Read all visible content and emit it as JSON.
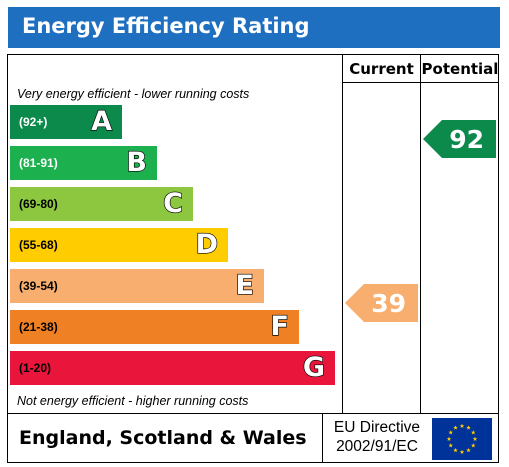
{
  "title": "Energy Efficiency Rating",
  "columns": {
    "current": "Current",
    "potential": "Potential"
  },
  "top_caption": "Very energy efficient - lower running costs",
  "bottom_caption": "Not energy efficient - higher running costs",
  "bands": [
    {
      "range": "(92+)",
      "letter": "A",
      "color": "#0c8a4b",
      "light": true
    },
    {
      "range": "(81-91)",
      "letter": "B",
      "color": "#1cb04e",
      "light": true
    },
    {
      "range": "(69-80)",
      "letter": "C",
      "color": "#8dc63f",
      "light": false
    },
    {
      "range": "(55-68)",
      "letter": "D",
      "color": "#ffcc00",
      "light": false
    },
    {
      "range": "(39-54)",
      "letter": "E",
      "color": "#f7ae6f",
      "light": false
    },
    {
      "range": "(21-38)",
      "letter": "F",
      "color": "#ef8023",
      "light": false
    },
    {
      "range": "(1-20)",
      "letter": "G",
      "color": "#e9153b",
      "light": false
    }
  ],
  "current_rating": {
    "value": "39",
    "band": "E",
    "color": "#f7ae6f"
  },
  "potential_rating": {
    "value": "92",
    "band": "A",
    "color": "#0c8a4b"
  },
  "footer": {
    "region": "England, Scotland & Wales",
    "directive_line1": "EU Directive",
    "directive_line2": "2002/91/EC"
  },
  "eu_flag": {
    "background": "#003399",
    "stars": "#ffcc00",
    "icon": "eu-flag-icon"
  }
}
